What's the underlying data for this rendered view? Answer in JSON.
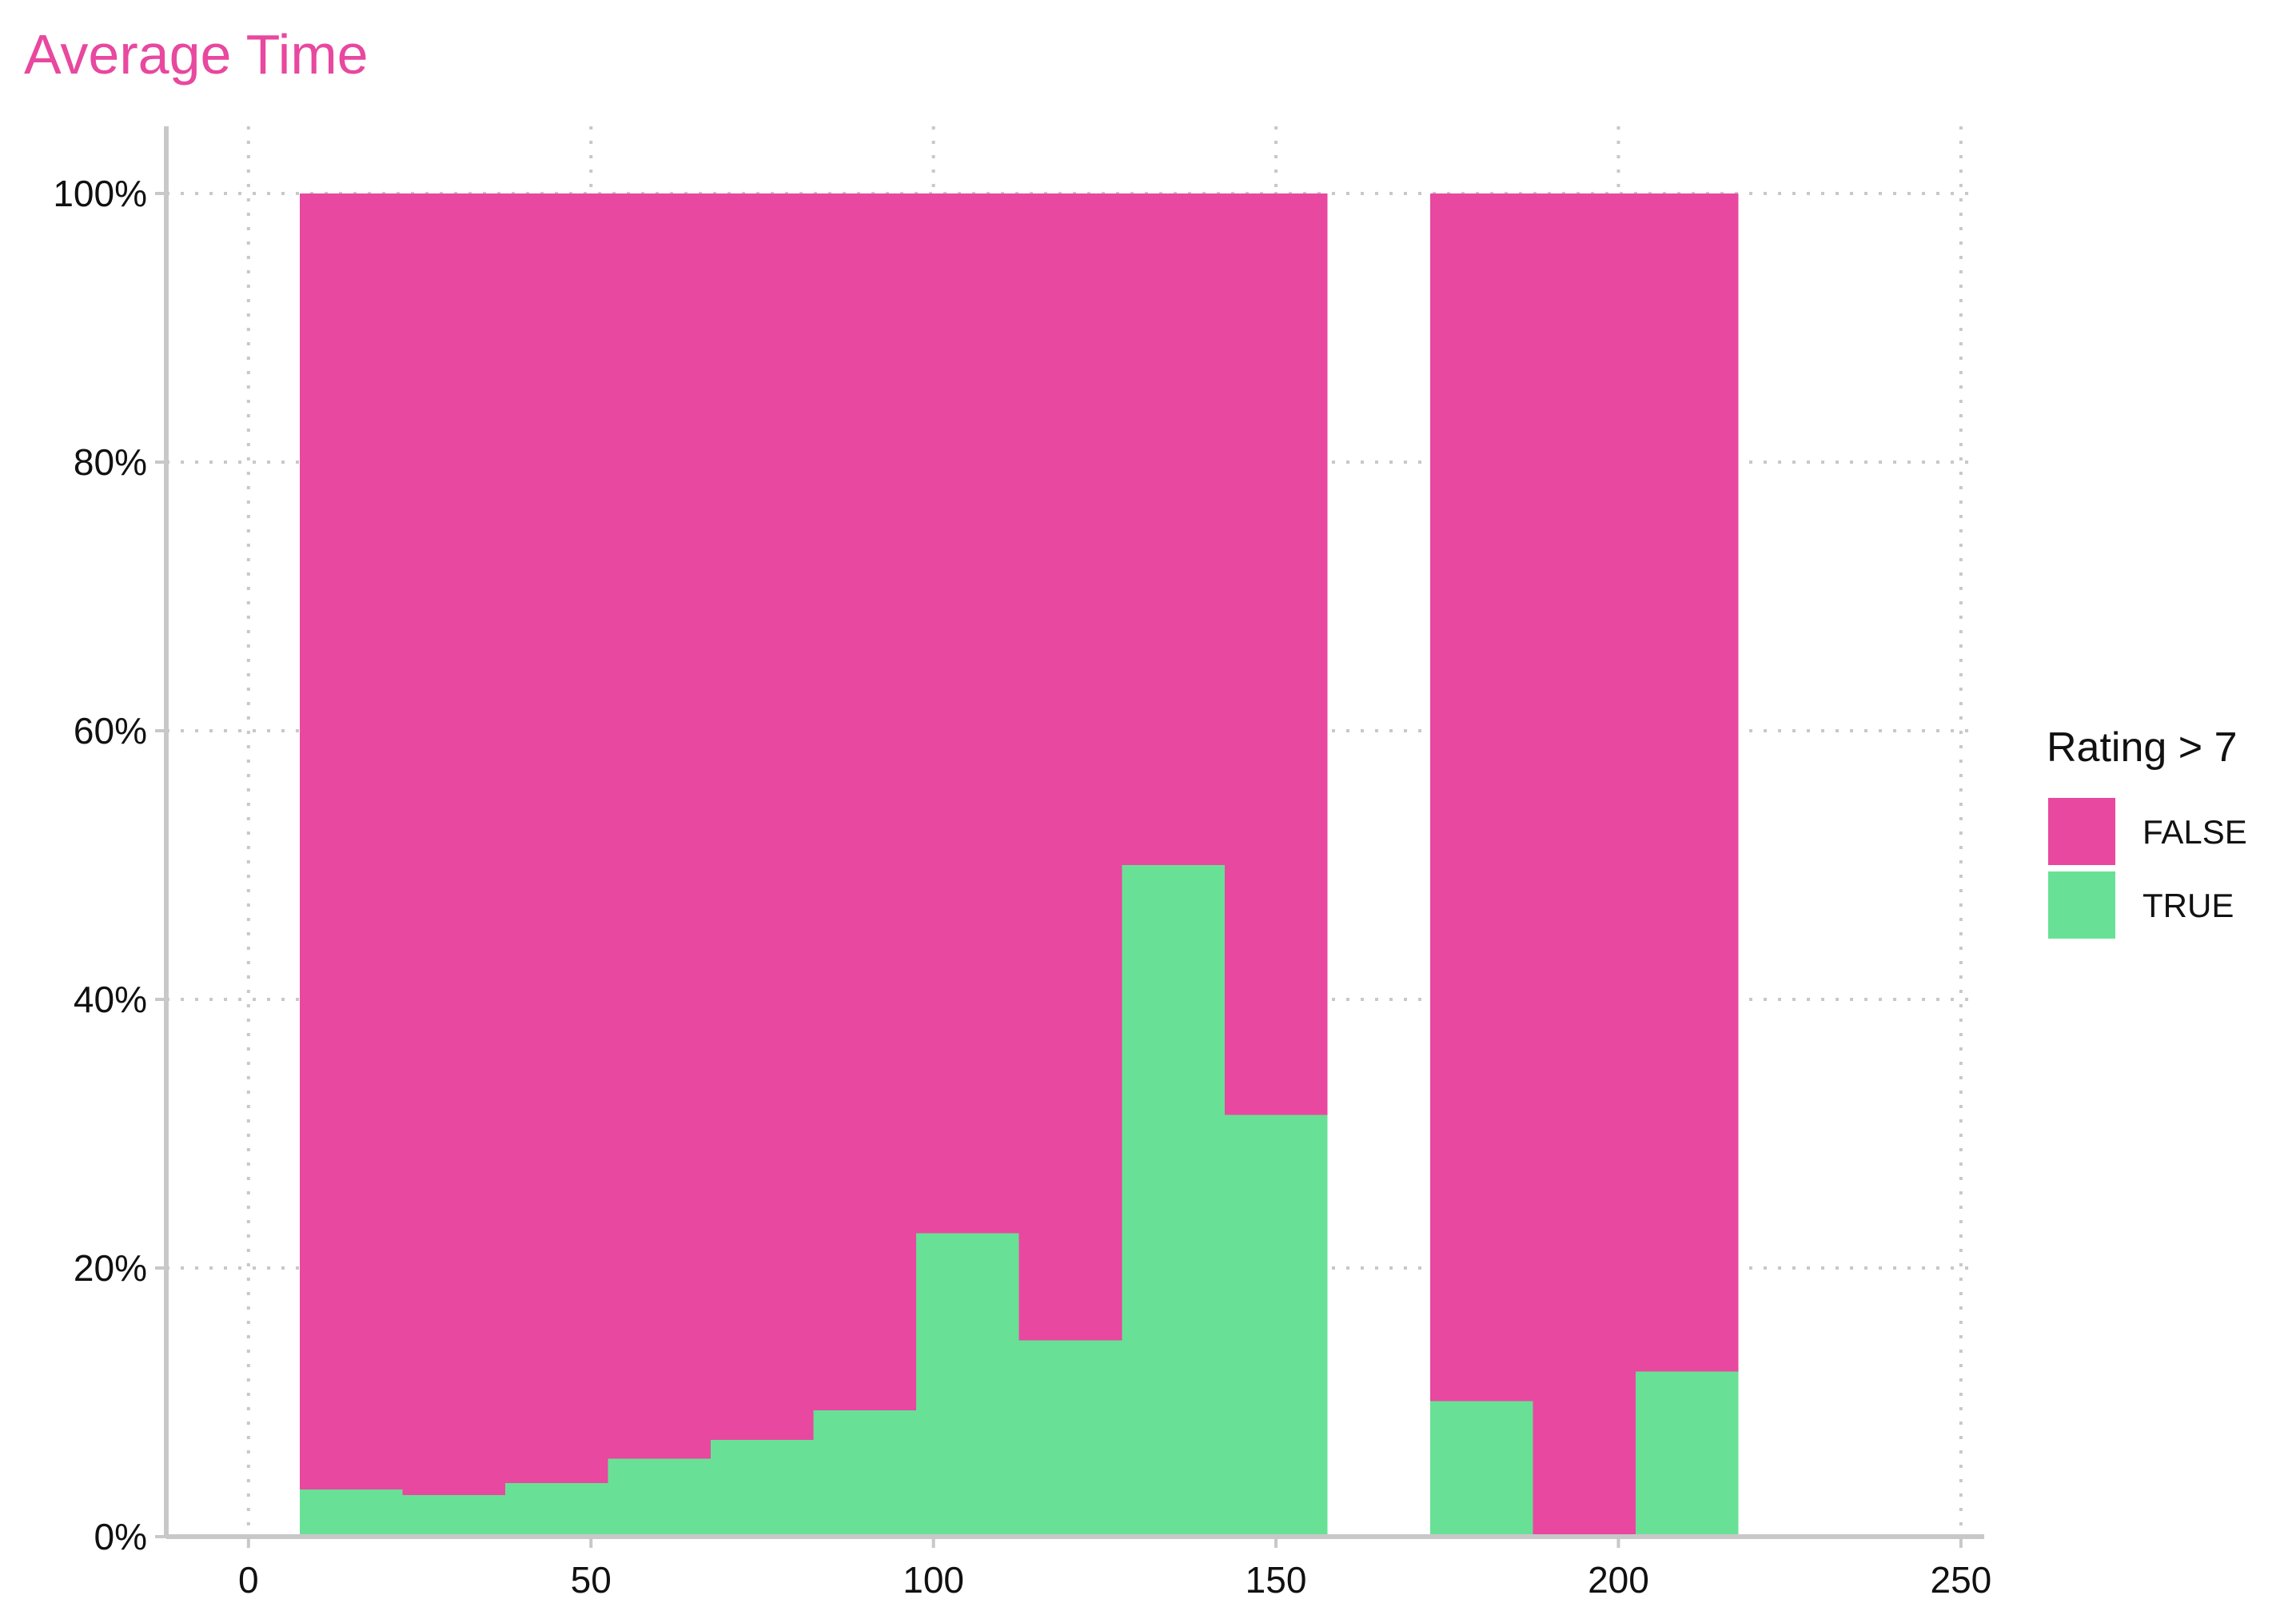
{
  "chart_data": {
    "type": "bar",
    "title": "Average Time",
    "title_color": "#E8489F",
    "xlabel": "",
    "ylabel": "",
    "xlim": [
      -12,
      252
    ],
    "ylim": [
      0,
      1.05
    ],
    "x_ticks": [
      0,
      50,
      100,
      150,
      200,
      250
    ],
    "x_tick_labels": [
      "0",
      "50",
      "100",
      "150",
      "200",
      "250"
    ],
    "y_ticks": [
      0,
      0.2,
      0.4,
      0.6,
      0.8,
      1.0
    ],
    "y_tick_labels": [
      "0%",
      "20%",
      "40%",
      "60%",
      "80%",
      "100%"
    ],
    "grid": "dotted",
    "legend": {
      "title": "Rating > 7",
      "position": "right",
      "entries": [
        {
          "label": "FALSE",
          "color": "#E8489F"
        },
        {
          "label": "TRUE",
          "color": "#68E196"
        }
      ]
    },
    "bins": [
      {
        "x": 15,
        "true_share": 0.035
      },
      {
        "x": 30,
        "true_share": 0.031
      },
      {
        "x": 45,
        "true_share": 0.04
      },
      {
        "x": 60,
        "true_share": 0.058
      },
      {
        "x": 75,
        "true_share": 0.072
      },
      {
        "x": 90,
        "true_share": 0.094
      },
      {
        "x": 105,
        "true_share": 0.226
      },
      {
        "x": 120,
        "true_share": 0.146
      },
      {
        "x": 135,
        "true_share": 0.5
      },
      {
        "x": 150,
        "true_share": 0.314
      },
      {
        "x": 180,
        "true_share": 0.101
      },
      {
        "x": 195,
        "true_share": 0.0
      },
      {
        "x": 210,
        "true_share": 0.123
      }
    ],
    "series": [
      {
        "name": "FALSE",
        "color": "#E8489F"
      },
      {
        "name": "TRUE",
        "color": "#68E196"
      }
    ]
  }
}
